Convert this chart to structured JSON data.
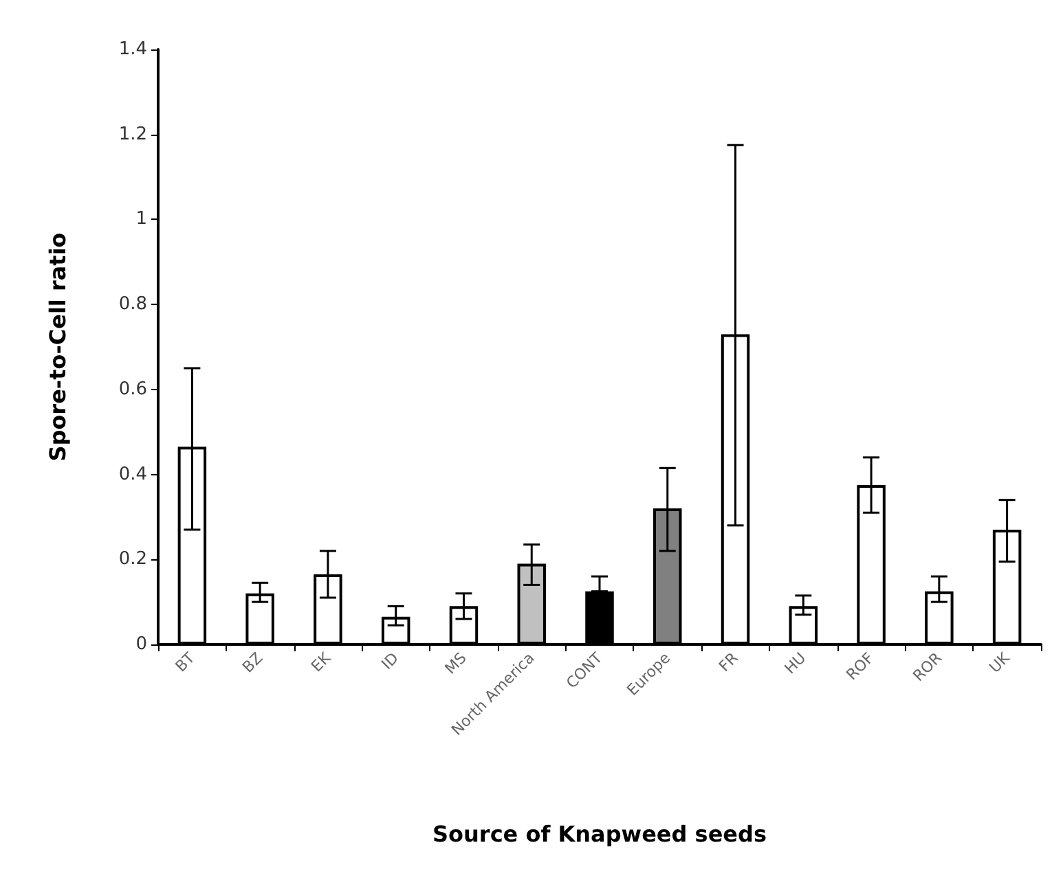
{
  "chart_data": {
    "type": "bar",
    "xlabel": "Source of Knapweed seeds",
    "ylabel": "Spore-to-Cell ratio",
    "categories": [
      "BT",
      "BZ",
      "EK",
      "ID",
      "MS",
      "North America",
      "CONT",
      "Europe",
      "FR",
      "HU",
      "ROF",
      "ROR",
      "UK"
    ],
    "values": [
      0.465,
      0.12,
      0.165,
      0.065,
      0.09,
      0.19,
      0.125,
      0.32,
      0.73,
      0.09,
      0.375,
      0.125,
      0.27
    ],
    "colors": [
      "#ffffff",
      "#ffffff",
      "#ffffff",
      "#ffffff",
      "#ffffff",
      "#c0c0c0",
      "#000000",
      "#808080",
      "#ffffff",
      "#ffffff",
      "#ffffff",
      "#ffffff",
      "#ffffff"
    ],
    "errors": [
      [
        0.27,
        0.65
      ],
      [
        0.1,
        0.145
      ],
      [
        0.11,
        0.22
      ],
      [
        0.045,
        0.09
      ],
      [
        0.06,
        0.12
      ],
      [
        0.14,
        0.235
      ],
      [
        0.125,
        0.16
      ],
      [
        0.22,
        0.415
      ],
      [
        0.28,
        1.175
      ],
      [
        0.07,
        0.115
      ],
      [
        0.31,
        0.44
      ],
      [
        0.1,
        0.16
      ],
      [
        0.195,
        0.34
      ]
    ],
    "ylim": [
      0,
      1.4
    ],
    "yticks": [
      0,
      0.2,
      0.4,
      0.6,
      0.8,
      1,
      1.2,
      1.4
    ],
    "grid": false
  }
}
